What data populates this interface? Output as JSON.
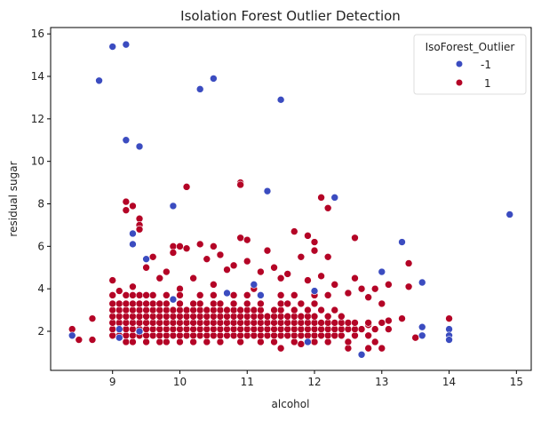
{
  "chart_data": {
    "type": "scatter",
    "title": "Isolation Forest Outlier Detection",
    "xlabel": "alcohol",
    "ylabel": "residual sugar",
    "xlim": [
      8.08,
      15.22
    ],
    "ylim": [
      0.16,
      16.3
    ],
    "xticks": [
      9,
      10,
      11,
      12,
      13,
      14,
      15
    ],
    "yticks": [
      2,
      4,
      6,
      8,
      10,
      12,
      14,
      16
    ],
    "grid": false,
    "legend": {
      "title": "IsoForest_Outlier",
      "placement": "top-right",
      "entries": [
        {
          "label": "-1",
          "color": "#3b4cc0"
        },
        {
          "label": "1",
          "color": "#b40426"
        }
      ]
    },
    "series": [
      {
        "name": "1",
        "color": "#b40426",
        "points": [
          [
            8.4,
            2.1
          ],
          [
            8.5,
            1.6
          ],
          [
            8.7,
            1.6
          ],
          [
            8.7,
            2.6
          ],
          [
            9.2,
            8.1
          ],
          [
            9.3,
            7.9
          ],
          [
            9.2,
            7.7
          ],
          [
            10.1,
            8.8
          ],
          [
            10.9,
            9.0
          ],
          [
            10.9,
            8.9
          ],
          [
            12.1,
            8.3
          ],
          [
            12.2,
            7.8
          ],
          [
            11.7,
            6.7
          ],
          [
            9.4,
            7.3
          ],
          [
            9.4,
            7.0
          ],
          [
            9.4,
            6.8
          ],
          [
            9.9,
            6.0
          ],
          [
            10.0,
            6.0
          ],
          [
            10.3,
            6.1
          ],
          [
            10.5,
            6.0
          ],
          [
            10.9,
            6.4
          ],
          [
            11.9,
            6.5
          ],
          [
            12.6,
            6.4
          ],
          [
            12.0,
            6.2
          ],
          [
            13.4,
            5.2
          ],
          [
            12.9,
            4.0
          ],
          [
            13.1,
            4.2
          ],
          [
            13.4,
            4.1
          ],
          [
            13.5,
            1.7
          ],
          [
            14.0,
            2.6
          ],
          [
            13.3,
            2.6
          ],
          [
            12.8,
            1.2
          ],
          [
            13.0,
            1.2
          ],
          [
            12.5,
            1.2
          ],
          [
            11.5,
            1.2
          ],
          [
            11.8,
            1.4
          ],
          [
            13.1,
            2.5
          ],
          [
            12.8,
            2.3
          ],
          [
            13.0,
            2.4
          ],
          [
            12.9,
            1.5
          ],
          [
            9.0,
            4.4
          ],
          [
            9.1,
            3.9
          ],
          [
            9.3,
            4.1
          ],
          [
            9.5,
            5.0
          ],
          [
            9.6,
            5.5
          ],
          [
            9.7,
            4.5
          ],
          [
            9.8,
            4.8
          ],
          [
            10.0,
            4.0
          ],
          [
            10.1,
            5.9
          ],
          [
            10.2,
            4.5
          ],
          [
            10.4,
            5.4
          ],
          [
            10.6,
            5.6
          ],
          [
            10.7,
            4.9
          ],
          [
            10.8,
            5.1
          ],
          [
            11.0,
            5.3
          ],
          [
            11.0,
            6.3
          ],
          [
            11.2,
            4.8
          ],
          [
            11.4,
            5.0
          ],
          [
            11.5,
            4.5
          ],
          [
            11.6,
            4.7
          ],
          [
            11.8,
            5.5
          ],
          [
            11.9,
            4.4
          ],
          [
            12.0,
            5.8
          ],
          [
            12.1,
            4.6
          ],
          [
            12.3,
            4.2
          ],
          [
            12.5,
            3.8
          ],
          [
            12.6,
            4.5
          ],
          [
            12.7,
            4.0
          ],
          [
            12.8,
            3.6
          ],
          [
            13.0,
            3.3
          ],
          [
            12.2,
            5.5
          ],
          [
            10.5,
            4.2
          ],
          [
            9.9,
            5.7
          ],
          [
            11.3,
            5.8
          ],
          [
            11.1,
            4.0
          ]
        ],
        "cluster_rows": [
          {
            "y": 1.5,
            "x": [
              9.2,
              9.3,
              9.5,
              9.7,
              9.8,
              10.0,
              10.2,
              10.4,
              10.6,
              10.9,
              11.2,
              11.4,
              11.7,
              12.0,
              12.2,
              12.5
            ]
          },
          {
            "y": 1.8,
            "x": [
              9.0,
              9.1,
              9.2,
              9.3,
              9.4,
              9.5,
              9.6,
              9.7,
              9.8,
              9.9,
              10.0,
              10.1,
              10.2,
              10.3,
              10.4,
              10.5,
              10.6,
              10.7,
              10.8,
              10.9,
              11.0,
              11.1,
              11.2,
              11.3,
              11.4,
              11.5,
              11.6,
              11.7,
              11.8,
              11.9,
              12.0,
              12.1,
              12.2,
              12.3,
              12.4,
              12.6,
              12.8
            ]
          },
          {
            "y": 2.1,
            "x": [
              9.0,
              9.1,
              9.2,
              9.3,
              9.4,
              9.5,
              9.6,
              9.7,
              9.8,
              9.9,
              10.0,
              10.1,
              10.2,
              10.3,
              10.4,
              10.5,
              10.6,
              10.7,
              10.8,
              10.9,
              11.0,
              11.1,
              11.2,
              11.3,
              11.4,
              11.5,
              11.6,
              11.7,
              11.8,
              11.9,
              12.0,
              12.1,
              12.2,
              12.3,
              12.4,
              12.5,
              12.6,
              12.7,
              12.9,
              13.1
            ]
          },
          {
            "y": 2.4,
            "x": [
              9.0,
              9.1,
              9.2,
              9.3,
              9.4,
              9.5,
              9.6,
              9.7,
              9.8,
              9.9,
              10.0,
              10.1,
              10.2,
              10.3,
              10.4,
              10.5,
              10.6,
              10.7,
              10.8,
              10.9,
              11.0,
              11.1,
              11.2,
              11.3,
              11.4,
              11.5,
              11.6,
              11.7,
              11.8,
              11.9,
              12.0,
              12.1,
              12.2,
              12.3,
              12.4,
              12.5,
              12.6,
              12.8
            ]
          },
          {
            "y": 2.7,
            "x": [
              9.0,
              9.1,
              9.2,
              9.3,
              9.4,
              9.5,
              9.6,
              9.7,
              9.8,
              9.9,
              10.0,
              10.1,
              10.2,
              10.3,
              10.4,
              10.5,
              10.6,
              10.7,
              10.8,
              10.9,
              11.0,
              11.1,
              11.2,
              11.3,
              11.4,
              11.5,
              11.6,
              11.7,
              11.8,
              11.9,
              12.0,
              12.2,
              12.4
            ]
          },
          {
            "y": 3.0,
            "x": [
              9.0,
              9.1,
              9.2,
              9.3,
              9.4,
              9.5,
              9.6,
              9.7,
              9.8,
              9.9,
              10.0,
              10.1,
              10.2,
              10.3,
              10.4,
              10.5,
              10.6,
              10.7,
              10.8,
              10.9,
              11.0,
              11.1,
              11.2,
              11.4,
              11.5,
              11.7,
              11.9,
              12.1,
              12.3
            ]
          },
          {
            "y": 3.3,
            "x": [
              9.0,
              9.1,
              9.2,
              9.3,
              9.4,
              9.5,
              9.6,
              9.7,
              9.8,
              10.0,
              10.2,
              10.3,
              10.5,
              10.6,
              10.8,
              11.0,
              11.2,
              11.5,
              11.6,
              11.8,
              12.0
            ]
          },
          {
            "y": 3.7,
            "x": [
              9.0,
              9.2,
              9.3,
              9.4,
              9.5,
              9.6,
              9.8,
              10.0,
              10.3,
              10.5,
              10.8,
              11.0,
              11.5,
              11.7,
              12.0,
              12.2
            ]
          }
        ]
      },
      {
        "name": "-1",
        "color": "#3b4cc0",
        "points": [
          [
            9.0,
            15.4
          ],
          [
            9.2,
            15.5
          ],
          [
            8.8,
            13.8
          ],
          [
            10.3,
            13.4
          ],
          [
            10.5,
            13.9
          ],
          [
            11.5,
            12.9
          ],
          [
            9.2,
            11.0
          ],
          [
            9.4,
            10.7
          ],
          [
            9.9,
            7.9
          ],
          [
            11.3,
            8.6
          ],
          [
            12.3,
            8.3
          ],
          [
            14.9,
            7.5
          ],
          [
            9.3,
            6.6
          ],
          [
            9.3,
            6.1
          ],
          [
            9.5,
            5.4
          ],
          [
            13.3,
            6.2
          ],
          [
            13.0,
            4.8
          ],
          [
            13.6,
            4.3
          ],
          [
            11.1,
            4.2
          ],
          [
            11.2,
            3.7
          ],
          [
            12.0,
            3.9
          ],
          [
            10.7,
            3.8
          ],
          [
            8.4,
            1.8
          ],
          [
            12.7,
            0.9
          ],
          [
            13.6,
            2.2
          ],
          [
            13.6,
            1.8
          ],
          [
            14.0,
            2.1
          ],
          [
            14.0,
            1.8
          ],
          [
            14.0,
            1.6
          ],
          [
            9.1,
            1.7
          ],
          [
            11.9,
            1.5
          ],
          [
            9.9,
            3.5
          ],
          [
            9.1,
            2.1
          ],
          [
            9.4,
            2.0
          ]
        ]
      }
    ]
  }
}
